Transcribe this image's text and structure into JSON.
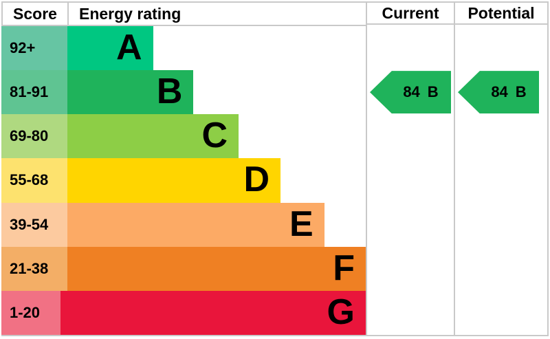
{
  "headers": {
    "score": "Score",
    "energy_rating": "Energy rating",
    "current": "Current",
    "potential": "Potential"
  },
  "chart_data": {
    "type": "bar",
    "orientation": "horizontal",
    "description": "EPC energy efficiency rating chart",
    "categories": [
      "A",
      "B",
      "C",
      "D",
      "E",
      "F",
      "G"
    ],
    "score_ranges": [
      "92+",
      "81-91",
      "69-80",
      "55-68",
      "39-54",
      "21-38",
      "1-20"
    ],
    "bands": [
      {
        "letter": "A",
        "score_range": "92+",
        "band_color": "#00c781",
        "score_color": "#66c5a3",
        "bar_width_pct": "23.5%"
      },
      {
        "letter": "B",
        "score_range": "81-91",
        "band_color": "#1fb35b",
        "score_color": "#5fc492",
        "bar_width_pct": "34.6%"
      },
      {
        "letter": "C",
        "score_range": "69-80",
        "band_color": "#8dce46",
        "score_color": "#afd980",
        "bar_width_pct": "47.0%"
      },
      {
        "letter": "D",
        "score_range": "55-68",
        "band_color": "#ffd500",
        "score_color": "#fde26e",
        "bar_width_pct": "58.5%"
      },
      {
        "letter": "E",
        "score_range": "39-54",
        "band_color": "#fcaa65",
        "score_color": "#fcca9f",
        "bar_width_pct": "70.5%"
      },
      {
        "letter": "F",
        "score_range": "21-38",
        "band_color": "#ef8023",
        "score_color": "#f3ae66",
        "bar_width_pct": "82.3%"
      },
      {
        "letter": "G",
        "score_range": "1-20",
        "band_color": "#e9153b",
        "score_color": "#f17184",
        "bar_width_pct": "94.2%"
      }
    ],
    "current": {
      "score": "84",
      "band": "B",
      "color": "#1fb35b",
      "row_index": 1
    },
    "potential": {
      "score": "84",
      "band": "B",
      "color": "#1fb35b",
      "row_index": 1
    }
  },
  "colors": {
    "border": "#c9c9c9",
    "background": "#ffffff",
    "text": "#000000"
  }
}
